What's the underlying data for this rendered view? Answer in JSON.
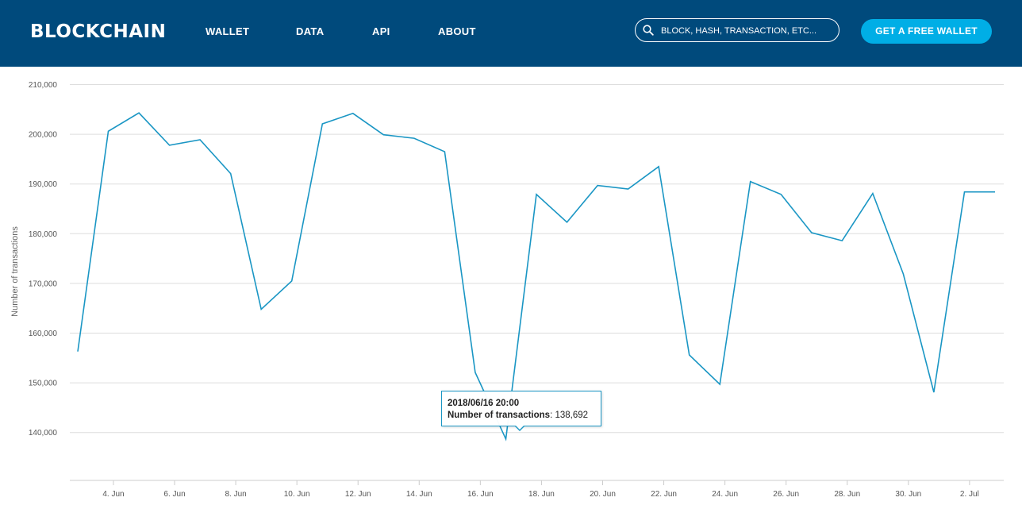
{
  "header": {
    "logo": "BLOCKCHAIN",
    "nav": [
      "WALLET",
      "DATA",
      "API",
      "ABOUT"
    ],
    "search_placeholder": "BLOCK, HASH, TRANSACTION, ETC...",
    "cta_label": "GET A FREE WALLET"
  },
  "colors": {
    "header_bg": "#004a7c",
    "cta_bg": "#00aee6",
    "line": "#1a96c4",
    "grid": "#dddddd"
  },
  "chart_data": {
    "type": "line",
    "title": "",
    "xlabel": "",
    "ylabel": "Number of transactions",
    "ylim": [
      130000,
      210000
    ],
    "yticks": [
      140000,
      150000,
      160000,
      170000,
      180000,
      190000,
      200000,
      210000
    ],
    "ytick_labels": [
      "140,000",
      "150,000",
      "160,000",
      "170,000",
      "180,000",
      "190,000",
      "200,000",
      "210,000"
    ],
    "xlim": [
      "2018-06-02T20:00",
      "2018-07-02T20:00"
    ],
    "xticks": [
      "2018-06-04",
      "2018-06-06",
      "2018-06-08",
      "2018-06-10",
      "2018-06-12",
      "2018-06-14",
      "2018-06-16",
      "2018-06-18",
      "2018-06-20",
      "2018-06-22",
      "2018-06-24",
      "2018-06-26",
      "2018-06-28",
      "2018-06-30",
      "2018-07-02"
    ],
    "xtick_labels": [
      "4. Jun",
      "6. Jun",
      "8. Jun",
      "10. Jun",
      "12. Jun",
      "14. Jun",
      "16. Jun",
      "18. Jun",
      "20. Jun",
      "22. Jun",
      "24. Jun",
      "26. Jun",
      "28. Jun",
      "30. Jun",
      "2. Jul"
    ],
    "grid": true,
    "legend": "none",
    "series": [
      {
        "x": [
          "2018-06-02T20:00",
          "2018-06-03T20:00",
          "2018-06-04T20:00",
          "2018-06-05T20:00",
          "2018-06-06T20:00",
          "2018-06-07T20:00",
          "2018-06-08T20:00",
          "2018-06-09T20:00",
          "2018-06-10T20:00",
          "2018-06-11T20:00",
          "2018-06-12T20:00",
          "2018-06-13T20:00",
          "2018-06-14T20:00",
          "2018-06-15T20:00",
          "2018-06-16T20:00",
          "2018-06-17T20:00",
          "2018-06-18T20:00",
          "2018-06-19T20:00",
          "2018-06-20T20:00",
          "2018-06-21T20:00",
          "2018-06-22T20:00",
          "2018-06-23T20:00",
          "2018-06-24T20:00",
          "2018-06-25T20:00",
          "2018-06-26T20:00",
          "2018-06-27T20:00",
          "2018-06-28T20:00",
          "2018-06-29T20:00",
          "2018-06-30T20:00",
          "2018-07-01T20:00",
          "2018-07-02T20:00"
        ],
        "values": [
          156300,
          200600,
          204300,
          197800,
          198900,
          192100,
          164800,
          170500,
          202100,
          204200,
          199900,
          199200,
          196500,
          152100,
          138692,
          187900,
          182300,
          189700,
          189000,
          193500,
          155600,
          149700,
          190500,
          187900,
          180200,
          178600,
          188100,
          171900,
          148100,
          188400,
          188400
        ]
      }
    ],
    "tooltip": {
      "date": "2018/06/16 20:00",
      "label": "Number of transactions",
      "value": "138,692"
    }
  }
}
